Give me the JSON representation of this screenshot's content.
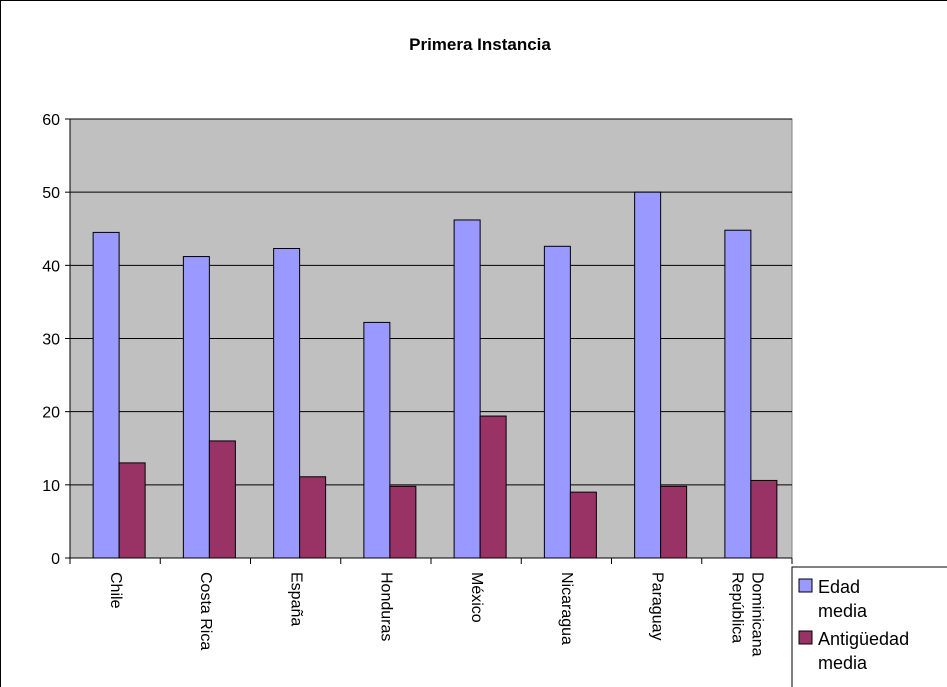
{
  "chart_data": {
    "type": "bar",
    "title": "Primera Instancia",
    "categories": [
      "Chile",
      "Costa Rica",
      "España",
      "Honduras",
      "México",
      "Nicaragua",
      "Paraguay",
      "República Dominicana"
    ],
    "series": [
      {
        "name": "Edad media",
        "values": [
          44.5,
          41.2,
          42.3,
          32.2,
          46.2,
          42.6,
          50.0,
          44.8
        ],
        "color": "#9999ff"
      },
      {
        "name": "Antigüedad media",
        "values": [
          13.0,
          16.0,
          11.1,
          9.8,
          19.4,
          9.0,
          9.8,
          10.6
        ],
        "color": "#993366"
      }
    ],
    "ylim": [
      0,
      60
    ],
    "yticks": [
      0,
      10,
      20,
      30,
      40,
      50,
      60
    ],
    "xlabel": "",
    "ylabel": "",
    "grid": true,
    "plot_background": "#c0c0c0",
    "legend_position": "right"
  }
}
